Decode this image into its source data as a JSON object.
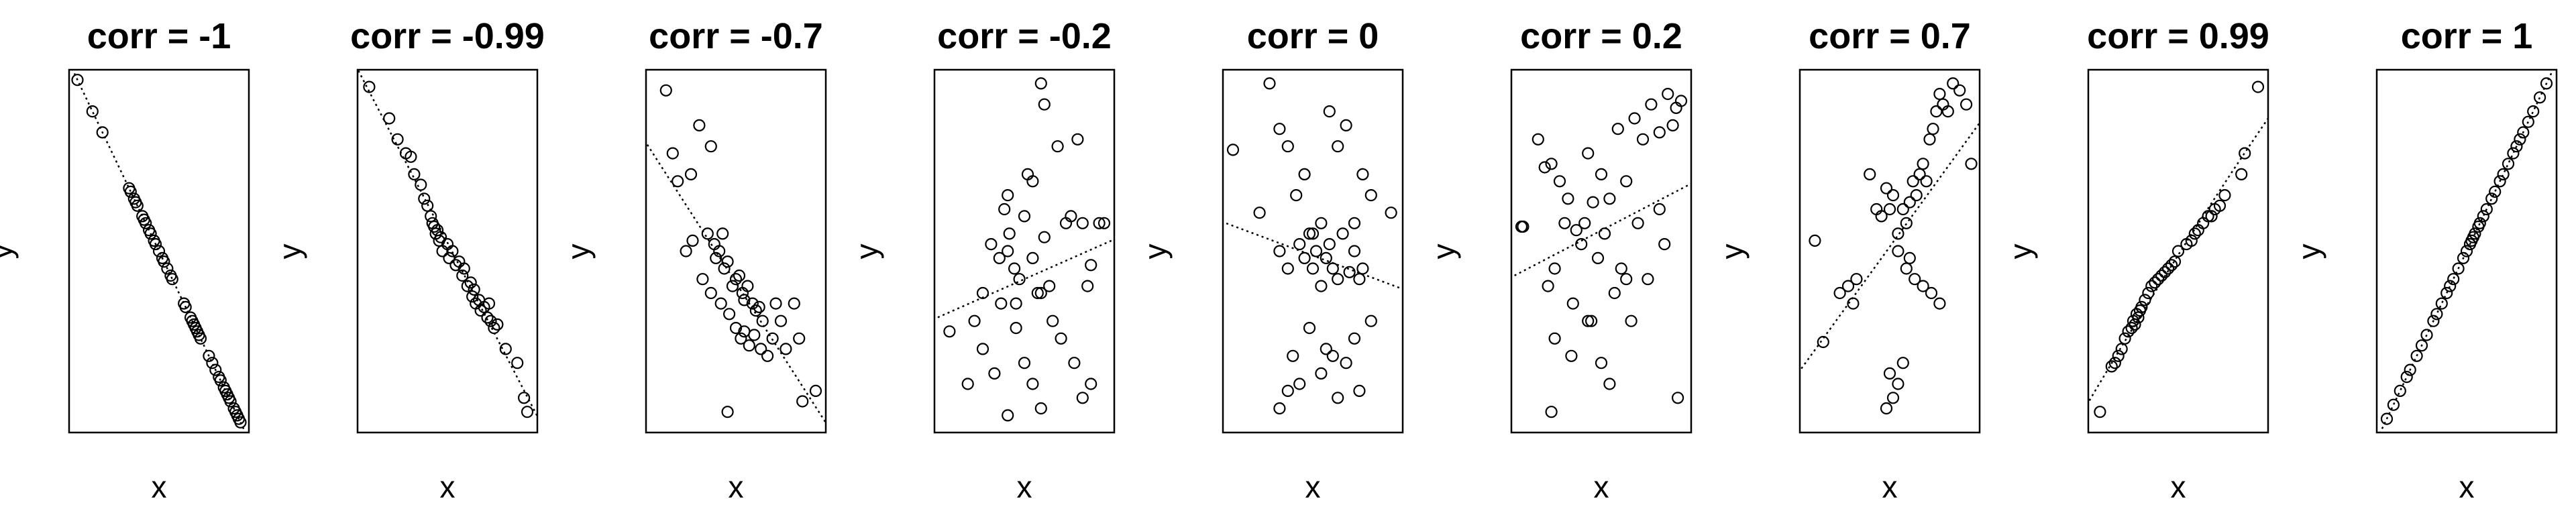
{
  "chart_data": [
    {
      "type": "scatter",
      "title": "corr =  -1",
      "xlabel": "x",
      "ylabel": "y",
      "correlation": -1,
      "fit_line": "linear",
      "x": [
        0.01,
        0.1,
        0.16,
        0.32,
        0.33,
        0.35,
        0.36,
        0.37,
        0.4,
        0.41,
        0.42,
        0.44,
        0.45,
        0.47,
        0.48,
        0.5,
        0.52,
        0.53,
        0.55,
        0.57,
        0.58,
        0.65,
        0.66,
        0.69,
        0.7,
        0.71,
        0.72,
        0.73,
        0.74,
        0.75,
        0.8,
        0.82,
        0.84,
        0.86,
        0.87,
        0.89,
        0.9,
        0.91,
        0.92,
        0.93,
        0.95,
        0.96,
        0.97,
        0.98,
        0.99
      ],
      "y": [
        0.99,
        0.9,
        0.84,
        0.68,
        0.67,
        0.65,
        0.64,
        0.63,
        0.6,
        0.59,
        0.58,
        0.56,
        0.55,
        0.53,
        0.52,
        0.5,
        0.48,
        0.47,
        0.45,
        0.43,
        0.42,
        0.35,
        0.34,
        0.31,
        0.3,
        0.29,
        0.28,
        0.27,
        0.26,
        0.25,
        0.2,
        0.18,
        0.16,
        0.14,
        0.13,
        0.11,
        0.1,
        0.09,
        0.08,
        0.07,
        0.05,
        0.04,
        0.03,
        0.02,
        0.01
      ]
    },
    {
      "type": "scatter",
      "title": "corr =  -0.99",
      "xlabel": "x",
      "ylabel": "y",
      "correlation": -0.99,
      "fit_line": "linear",
      "x": [
        0.03,
        0.15,
        0.2,
        0.25,
        0.28,
        0.3,
        0.34,
        0.36,
        0.38,
        0.4,
        0.41,
        0.42,
        0.43,
        0.44,
        0.45,
        0.46,
        0.47,
        0.5,
        0.51,
        0.53,
        0.55,
        0.57,
        0.59,
        0.6,
        0.62,
        0.64,
        0.65,
        0.66,
        0.67,
        0.69,
        0.7,
        0.72,
        0.74,
        0.75,
        0.76,
        0.78,
        0.8,
        0.85,
        0.92,
        0.96,
        0.98
      ],
      "y": [
        0.97,
        0.88,
        0.82,
        0.78,
        0.77,
        0.72,
        0.69,
        0.65,
        0.63,
        0.6,
        0.58,
        0.57,
        0.55,
        0.56,
        0.53,
        0.54,
        0.5,
        0.52,
        0.48,
        0.5,
        0.46,
        0.47,
        0.43,
        0.45,
        0.4,
        0.41,
        0.37,
        0.39,
        0.35,
        0.36,
        0.33,
        0.34,
        0.31,
        0.35,
        0.3,
        0.28,
        0.29,
        0.22,
        0.18,
        0.08,
        0.04
      ]
    },
    {
      "type": "scatter",
      "title": "corr =  -0.7",
      "xlabel": "x",
      "ylabel": "y",
      "correlation": -0.7,
      "fit_line": "linear",
      "x": [
        0.08,
        0.12,
        0.28,
        0.15,
        0.23,
        0.35,
        0.42,
        0.2,
        0.24,
        0.33,
        0.37,
        0.38,
        0.4,
        0.43,
        0.45,
        0.48,
        0.5,
        0.52,
        0.54,
        0.55,
        0.57,
        0.6,
        0.62,
        0.64,
        0.66,
        0.3,
        0.35,
        0.41,
        0.46,
        0.5,
        0.53,
        0.55,
        0.58,
        0.61,
        0.65,
        0.69,
        0.72,
        0.74,
        0.77,
        0.8,
        0.85,
        0.88,
        0.98,
        0.45,
        0.9
      ],
      "y": [
        0.96,
        0.78,
        0.86,
        0.7,
        0.72,
        0.8,
        0.55,
        0.5,
        0.53,
        0.55,
        0.52,
        0.48,
        0.5,
        0.45,
        0.47,
        0.4,
        0.42,
        0.43,
        0.38,
        0.36,
        0.4,
        0.35,
        0.33,
        0.34,
        0.3,
        0.42,
        0.38,
        0.35,
        0.32,
        0.28,
        0.25,
        0.27,
        0.23,
        0.26,
        0.22,
        0.2,
        0.25,
        0.35,
        0.3,
        0.22,
        0.35,
        0.25,
        0.1,
        0.04,
        0.07
      ]
    },
    {
      "type": "scatter",
      "title": "corr =  -0.2",
      "xlabel": "x",
      "ylabel": "y",
      "correlation": -0.2,
      "fit_line": "linear",
      "x": [
        0.05,
        0.16,
        0.25,
        0.3,
        0.35,
        0.38,
        0.4,
        0.41,
        0.44,
        0.47,
        0.5,
        0.52,
        0.55,
        0.58,
        0.6,
        0.62,
        0.65,
        0.7,
        0.75,
        0.78,
        0.82,
        0.85,
        0.9,
        0.95,
        0.98,
        0.2,
        0.25,
        0.32,
        0.36,
        0.4,
        0.45,
        0.5,
        0.55,
        0.6,
        0.67,
        0.72,
        0.8,
        0.85,
        0.9,
        0.4,
        0.45,
        0.55,
        0.6,
        0.62,
        0.88
      ],
      "y": [
        0.27,
        0.12,
        0.38,
        0.52,
        0.48,
        0.62,
        0.66,
        0.55,
        0.45,
        0.42,
        0.6,
        0.72,
        0.7,
        0.38,
        0.98,
        0.54,
        0.4,
        0.8,
        0.58,
        0.6,
        0.82,
        0.58,
        0.46,
        0.58,
        0.58,
        0.3,
        0.22,
        0.15,
        0.35,
        0.5,
        0.35,
        0.18,
        0.12,
        0.05,
        0.3,
        0.25,
        0.18,
        0.08,
        0.12,
        0.03,
        0.28,
        0.48,
        0.38,
        0.92,
        0.4
      ]
    },
    {
      "type": "scatter",
      "title": "corr =  0",
      "xlabel": "x",
      "ylabel": "y",
      "correlation": 0,
      "fit_line": "linear",
      "x": [
        0.02,
        0.18,
        0.24,
        0.3,
        0.35,
        0.4,
        0.45,
        0.5,
        0.55,
        0.6,
        0.65,
        0.7,
        0.75,
        0.8,
        0.85,
        0.97,
        0.3,
        0.35,
        0.42,
        0.45,
        0.48,
        0.5,
        0.52,
        0.55,
        0.58,
        0.6,
        0.62,
        0.65,
        0.68,
        0.72,
        0.75,
        0.78,
        0.8,
        0.38,
        0.42,
        0.48,
        0.55,
        0.62,
        0.7,
        0.78,
        0.85,
        0.3,
        0.35,
        0.58,
        0.65,
        0.75
      ],
      "y": [
        0.79,
        0.61,
        0.98,
        0.85,
        0.8,
        0.66,
        0.72,
        0.55,
        0.58,
        0.9,
        0.8,
        0.86,
        0.58,
        0.72,
        0.66,
        0.61,
        0.5,
        0.45,
        0.52,
        0.48,
        0.55,
        0.45,
        0.5,
        0.4,
        0.48,
        0.52,
        0.45,
        0.42,
        0.55,
        0.44,
        0.5,
        0.42,
        0.45,
        0.2,
        0.12,
        0.28,
        0.15,
        0.2,
        0.18,
        0.1,
        0.3,
        0.05,
        0.1,
        0.22,
        0.08,
        0.25
      ]
    },
    {
      "type": "scatter",
      "title": "corr =  0.2",
      "xlabel": "x",
      "ylabel": "y",
      "correlation": 0.2,
      "fit_line": "linear",
      "x": [
        0.02,
        0.03,
        0.12,
        0.16,
        0.2,
        0.25,
        0.3,
        0.35,
        0.4,
        0.42,
        0.45,
        0.5,
        0.55,
        0.6,
        0.65,
        0.7,
        0.75,
        0.8,
        0.85,
        0.9,
        0.93,
        0.95,
        0.98,
        0.18,
        0.22,
        0.28,
        0.33,
        0.38,
        0.44,
        0.48,
        0.52,
        0.58,
        0.62,
        0.68,
        0.72,
        0.78,
        0.88,
        0.22,
        0.32,
        0.42,
        0.5,
        0.55,
        0.65,
        0.85,
        0.96,
        0.2
      ],
      "y": [
        0.57,
        0.57,
        0.82,
        0.74,
        0.75,
        0.7,
        0.65,
        0.56,
        0.58,
        0.78,
        0.64,
        0.72,
        0.65,
        0.85,
        0.7,
        0.88,
        0.82,
        0.92,
        0.84,
        0.95,
        0.86,
        0.91,
        0.93,
        0.4,
        0.45,
        0.58,
        0.35,
        0.52,
        0.3,
        0.48,
        0.55,
        0.38,
        0.45,
        0.3,
        0.58,
        0.42,
        0.52,
        0.25,
        0.2,
        0.3,
        0.18,
        0.12,
        0.42,
        0.62,
        0.08,
        0.04
      ]
    },
    {
      "type": "scatter",
      "title": "corr =  0.7",
      "xlabel": "x",
      "ylabel": "y",
      "correlation": 0.7,
      "fit_line": "linear",
      "x": [
        0.05,
        0.1,
        0.2,
        0.25,
        0.3,
        0.38,
        0.42,
        0.45,
        0.48,
        0.5,
        0.52,
        0.55,
        0.58,
        0.6,
        0.62,
        0.64,
        0.66,
        0.68,
        0.7,
        0.72,
        0.74,
        0.76,
        0.78,
        0.8,
        0.82,
        0.85,
        0.88,
        0.92,
        0.96,
        0.99,
        0.55,
        0.6,
        0.62,
        0.65,
        0.7,
        0.75,
        0.8,
        0.5,
        0.55,
        0.48,
        0.52,
        0.58,
        0.28
      ],
      "y": [
        0.53,
        0.24,
        0.38,
        0.4,
        0.42,
        0.72,
        0.62,
        0.6,
        0.68,
        0.62,
        0.66,
        0.55,
        0.62,
        0.58,
        0.64,
        0.7,
        0.66,
        0.72,
        0.75,
        0.7,
        0.82,
        0.85,
        0.9,
        0.95,
        0.92,
        0.9,
        0.98,
        0.96,
        0.92,
        0.75,
        0.5,
        0.45,
        0.48,
        0.42,
        0.4,
        0.38,
        0.35,
        0.15,
        0.12,
        0.05,
        0.08,
        0.18,
        0.35
      ]
    },
    {
      "type": "scatter",
      "title": "corr =  0.99",
      "xlabel": "x",
      "ylabel": "y",
      "correlation": 0.99,
      "fit_line": "quadratic",
      "x": [
        0.03,
        0.1,
        0.12,
        0.14,
        0.16,
        0.18,
        0.2,
        0.22,
        0.23,
        0.24,
        0.25,
        0.26,
        0.27,
        0.28,
        0.3,
        0.32,
        0.34,
        0.36,
        0.38,
        0.4,
        0.42,
        0.44,
        0.46,
        0.48,
        0.5,
        0.55,
        0.58,
        0.6,
        0.62,
        0.65,
        0.68,
        0.7,
        0.72,
        0.75,
        0.78,
        0.98,
        0.88,
        0.9
      ],
      "y": [
        0.04,
        0.17,
        0.18,
        0.2,
        0.22,
        0.25,
        0.27,
        0.28,
        0.3,
        0.29,
        0.32,
        0.31,
        0.33,
        0.34,
        0.36,
        0.38,
        0.4,
        0.41,
        0.42,
        0.43,
        0.44,
        0.45,
        0.46,
        0.47,
        0.5,
        0.52,
        0.53,
        0.55,
        0.56,
        0.58,
        0.6,
        0.6,
        0.62,
        0.63,
        0.66,
        0.97,
        0.72,
        0.78
      ]
    },
    {
      "type": "scatter",
      "title": "corr =  1",
      "xlabel": "x",
      "ylabel": "y",
      "correlation": 1,
      "fit_line": "linear",
      "x": [
        0.02,
        0.06,
        0.1,
        0.14,
        0.16,
        0.2,
        0.23,
        0.26,
        0.3,
        0.32,
        0.35,
        0.38,
        0.4,
        0.42,
        0.45,
        0.48,
        0.5,
        0.52,
        0.53,
        0.54,
        0.55,
        0.57,
        0.58,
        0.6,
        0.62,
        0.65,
        0.67,
        0.7,
        0.72,
        0.75,
        0.78,
        0.8,
        0.82,
        0.84,
        0.87,
        0.9,
        0.94,
        0.98
      ],
      "y": [
        0.02,
        0.06,
        0.1,
        0.14,
        0.16,
        0.2,
        0.23,
        0.26,
        0.3,
        0.32,
        0.35,
        0.38,
        0.4,
        0.42,
        0.45,
        0.48,
        0.5,
        0.52,
        0.53,
        0.54,
        0.55,
        0.57,
        0.58,
        0.6,
        0.62,
        0.65,
        0.67,
        0.7,
        0.72,
        0.75,
        0.78,
        0.8,
        0.82,
        0.84,
        0.87,
        0.9,
        0.94,
        0.98
      ]
    }
  ]
}
